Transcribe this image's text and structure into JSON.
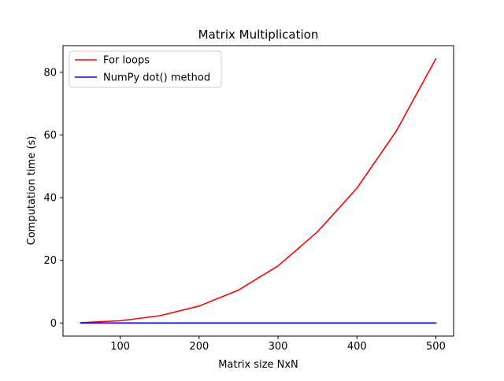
{
  "chart_data": {
    "type": "line",
    "title": "Matrix Multiplication",
    "xlabel": "Matrix size NxN",
    "ylabel": "Computation time (s)",
    "x": [
      50,
      100,
      150,
      200,
      250,
      300,
      350,
      400,
      450,
      500
    ],
    "series": [
      {
        "name": "For loops",
        "color": "#ff0000",
        "values": [
          0.1,
          0.7,
          2.3,
          5.4,
          10.5,
          18.2,
          29.1,
          43.0,
          61.3,
          84.3
        ]
      },
      {
        "name": "NumPy dot() method",
        "color": "#0000ff",
        "values": [
          0.0,
          0.0,
          0.0,
          0.0,
          0.0,
          0.0,
          0.0,
          0.0,
          0.0,
          0.0
        ]
      }
    ],
    "xlim": [
      27.5,
      522.5
    ],
    "ylim": [
      -4.2,
      88.5
    ],
    "xticks": [
      100,
      200,
      300,
      400,
      500
    ],
    "yticks": [
      0,
      20,
      40,
      60,
      80
    ],
    "grid": false,
    "legend_position": "upper left"
  }
}
